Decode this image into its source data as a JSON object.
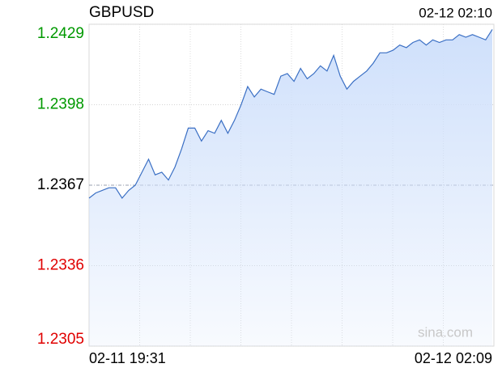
{
  "chart_data": {
    "type": "line",
    "title": "GBPUSD",
    "timestamp": "02-12 02:10",
    "watermark": "sina.com",
    "categories": [
      "02-11 19:31",
      null,
      null,
      null,
      null,
      null,
      null,
      null,
      null,
      null,
      null,
      null,
      null,
      null,
      null,
      null,
      null,
      null,
      null,
      null,
      null,
      null,
      null,
      null,
      null,
      null,
      null,
      null,
      null,
      null,
      null,
      null,
      null,
      null,
      null,
      null,
      null,
      null,
      null,
      null,
      null,
      null,
      null,
      null,
      null,
      null,
      null,
      null,
      null,
      null,
      null,
      null,
      null,
      null,
      null,
      null,
      null,
      null,
      null,
      null,
      null,
      "02-12 02:09"
    ],
    "series": [
      {
        "name": "GBPUSD",
        "color": "#3a6fc4",
        "values": [
          1.2362,
          1.2364,
          1.2365,
          1.2366,
          1.2366,
          1.2362,
          1.2365,
          1.2367,
          1.2372,
          1.2377,
          1.2371,
          1.2372,
          1.2369,
          1.2374,
          1.2381,
          1.2389,
          1.2389,
          1.2384,
          1.2388,
          1.2387,
          1.2392,
          1.2387,
          1.2392,
          1.2398,
          1.2405,
          1.2401,
          1.2404,
          1.2403,
          1.2402,
          1.2409,
          1.241,
          1.2407,
          1.2412,
          1.2408,
          1.241,
          1.2413,
          1.2411,
          1.2417,
          1.2409,
          1.2404,
          1.2407,
          1.2409,
          1.2411,
          1.2414,
          1.2418,
          1.2418,
          1.2419,
          1.2421,
          1.242,
          1.2422,
          1.2423,
          1.2421,
          1.2423,
          1.2422,
          1.2423,
          1.2423,
          1.2425,
          1.2424,
          1.2425,
          1.2424,
          1.2423,
          1.2427
        ]
      }
    ],
    "ylim": [
      1.2305,
      1.2429
    ],
    "yticks": [
      1.2305,
      1.2336,
      1.2367,
      1.2398,
      1.2429
    ],
    "ytick_colors": [
      "#e00000",
      "#e00000",
      "#000000",
      "#009900",
      "#009900"
    ],
    "grid": true,
    "area_fill": "#cfe0fb"
  }
}
